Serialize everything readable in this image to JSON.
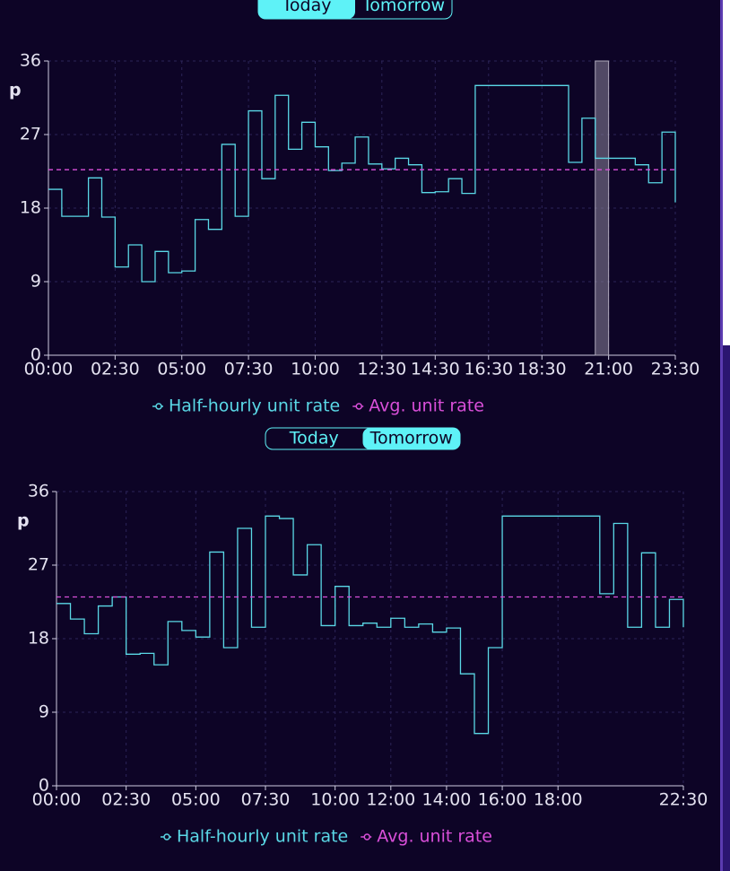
{
  "toggles": [
    {
      "options": [
        "Today",
        "Tomorrow"
      ],
      "selected_index": 0
    },
    {
      "options": [
        "Today",
        "Tomorrow"
      ],
      "selected_index": 1
    }
  ],
  "chart_data": [
    {
      "type": "line",
      "step": "after",
      "y_label": "p",
      "x": [
        0,
        0.5,
        1,
        1.5,
        2,
        2.5,
        3,
        3.5,
        4,
        4.5,
        5,
        5.5,
        6,
        6.5,
        7,
        7.5,
        8,
        8.5,
        9,
        9.5,
        10,
        10.5,
        11,
        11.5,
        12,
        12.5,
        13,
        13.5,
        14,
        14.5,
        15,
        15.5,
        16,
        16.5,
        17,
        17.5,
        18,
        18.5,
        19,
        19.5,
        20,
        20.5,
        21,
        21.5,
        22,
        22.5,
        23,
        23.5
      ],
      "series": [
        {
          "name": "Half-hourly unit rate",
          "color": "#5ad8e6",
          "values": [
            20.3,
            17.0,
            17.0,
            21.7,
            16.9,
            10.8,
            13.5,
            9.0,
            12.7,
            10.1,
            10.3,
            16.6,
            15.4,
            25.8,
            17.0,
            29.9,
            21.6,
            31.8,
            25.2,
            28.5,
            25.5,
            22.6,
            23.5,
            26.7,
            23.4,
            22.8,
            24.1,
            23.3,
            19.9,
            20.0,
            21.6,
            19.8,
            33.0,
            33.0,
            33.0,
            33.0,
            33.0,
            33.0,
            33.0,
            23.6,
            29.0,
            24.1,
            24.1,
            24.1,
            23.3,
            21.1,
            27.3,
            18.7
          ]
        }
      ],
      "average": {
        "name": "Avg. unit rate",
        "color": "#d94fd9",
        "value": 22.7
      },
      "highlight": [
        20.5,
        21
      ],
      "xlim": [
        0,
        23.5
      ],
      "xticks": [
        {
          "value": 0,
          "label": "00:00"
        },
        {
          "value": 2.5,
          "label": "02:30"
        },
        {
          "value": 5,
          "label": "05:00"
        },
        {
          "value": 7.5,
          "label": "07:30"
        },
        {
          "value": 10,
          "label": "10:00"
        },
        {
          "value": 12.5,
          "label": "12:30"
        },
        {
          "value": 14.5,
          "label": "14:30"
        },
        {
          "value": 16.5,
          "label": "16:30"
        },
        {
          "value": 18.5,
          "label": "18:30"
        },
        {
          "value": 21,
          "label": "21:00"
        },
        {
          "value": 23.5,
          "label": "23:30"
        }
      ],
      "ylim": [
        0,
        36
      ],
      "yticks": [
        0,
        9,
        18,
        27,
        36
      ],
      "grid": true
    },
    {
      "type": "line",
      "step": "after",
      "y_label": "p",
      "x": [
        0,
        0.5,
        1,
        1.5,
        2,
        2.5,
        3,
        3.5,
        4,
        4.5,
        5,
        5.5,
        6,
        6.5,
        7,
        7.5,
        8,
        8.5,
        9,
        9.5,
        10,
        10.5,
        11,
        11.5,
        12,
        12.5,
        13,
        13.5,
        14,
        14.5,
        15,
        15.5,
        16,
        16.5,
        17,
        17.5,
        18,
        18.5,
        19,
        19.5,
        20,
        20.5,
        21,
        21.5,
        22,
        22.5
      ],
      "series": [
        {
          "name": "Half-hourly unit rate",
          "color": "#5ad8e6",
          "values": [
            22.3,
            20.4,
            18.6,
            22.0,
            23.1,
            16.1,
            16.2,
            14.8,
            20.1,
            19.0,
            18.2,
            28.6,
            16.9,
            31.5,
            19.4,
            33.0,
            32.7,
            25.8,
            29.5,
            19.6,
            24.4,
            19.6,
            19.9,
            19.4,
            20.5,
            19.4,
            19.8,
            18.8,
            19.3,
            13.7,
            6.4,
            16.9,
            33.0,
            33.0,
            33.0,
            33.0,
            33.0,
            33.0,
            33.0,
            23.5,
            32.1,
            19.4,
            28.5,
            19.4,
            22.8,
            19.4
          ]
        }
      ],
      "average": {
        "name": "Avg. unit rate",
        "color": "#d94fd9",
        "value": 23.1
      },
      "xlim": [
        0,
        22.5
      ],
      "xticks": [
        {
          "value": 0,
          "label": "00:00"
        },
        {
          "value": 2.5,
          "label": "02:30"
        },
        {
          "value": 5,
          "label": "05:00"
        },
        {
          "value": 7.5,
          "label": "07:30"
        },
        {
          "value": 10,
          "label": "10:00"
        },
        {
          "value": 12,
          "label": "12:00"
        },
        {
          "value": 14,
          "label": "14:00"
        },
        {
          "value": 16,
          "label": "16:00"
        },
        {
          "value": 18,
          "label": "18:00"
        },
        {
          "value": 22.5,
          "label": "22:30"
        }
      ],
      "ylim": [
        0,
        36
      ],
      "yticks": [
        0,
        9,
        18,
        27,
        36
      ],
      "grid": true
    }
  ]
}
